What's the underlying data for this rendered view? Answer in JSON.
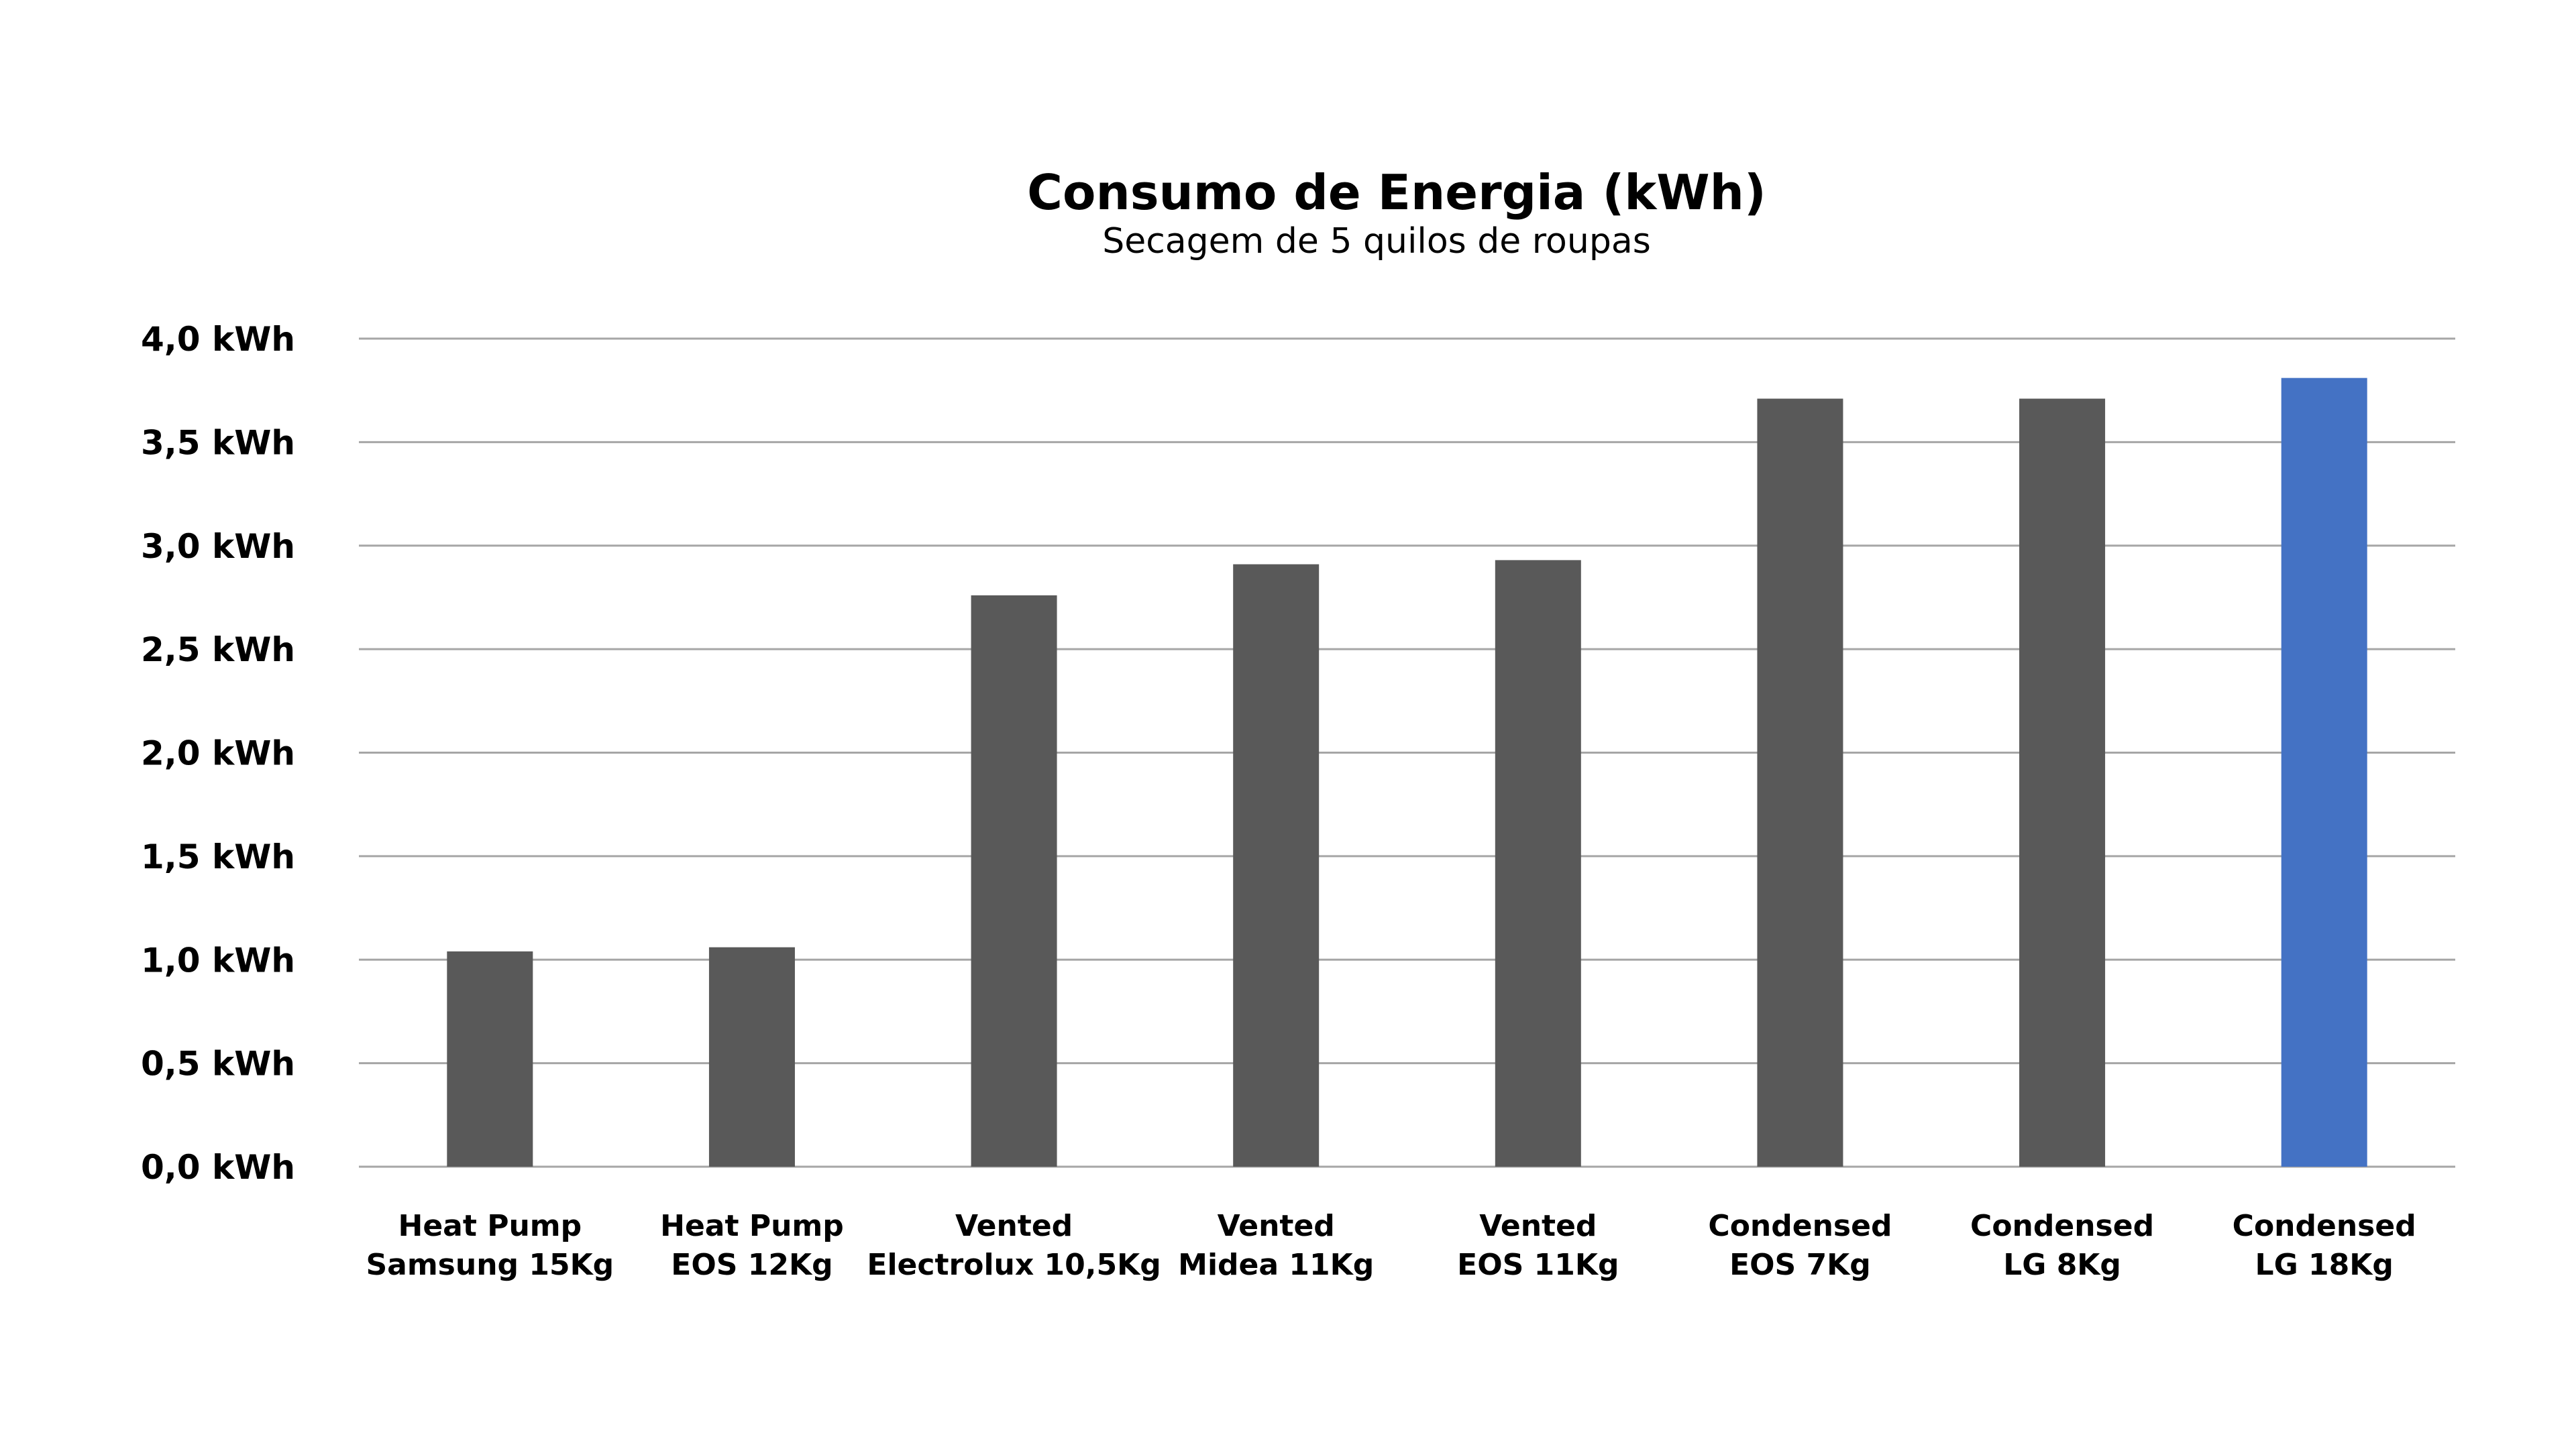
{
  "chart_data": {
    "type": "bar",
    "title": "Consumo de Energia (kWh)",
    "subtitle": "Secagem de 5 quilos de roupas",
    "xlabel": "",
    "ylabel": "",
    "categories": [
      [
        "Heat Pump",
        "Samsung 15Kg"
      ],
      [
        "Heat Pump",
        "EOS 12Kg"
      ],
      [
        "Vented",
        "Electrolux 10,5Kg"
      ],
      [
        "Vented",
        "Midea 11Kg"
      ],
      [
        "Vented",
        "EOS 11Kg"
      ],
      [
        "Condensed",
        "EOS 7Kg"
      ],
      [
        "Condensed",
        "LG 8Kg"
      ],
      [
        "Condensed",
        "LG 18Kg"
      ]
    ],
    "values": [
      1.04,
      1.06,
      2.76,
      2.91,
      2.93,
      3.71,
      3.71,
      3.81
    ],
    "ylim": [
      0,
      4
    ],
    "yticks": [
      0,
      0.5,
      1,
      1.5,
      2,
      2.5,
      3,
      3.5,
      4
    ],
    "ytick_labels": [
      "0,0 kWh",
      "0,5 kWh",
      "1,0 kWh",
      "1,5 kWh",
      "2,0 kWh",
      "2,5 kWh",
      "3,0 kWh",
      "3,5 kWh",
      "4,0 kWh"
    ],
    "grid": true,
    "legend": "none",
    "colors": {
      "default_bar": "#595959",
      "highlight_bar": "#4472c4",
      "gridline": "#a6a6a6"
    },
    "highlight_index": 7
  }
}
